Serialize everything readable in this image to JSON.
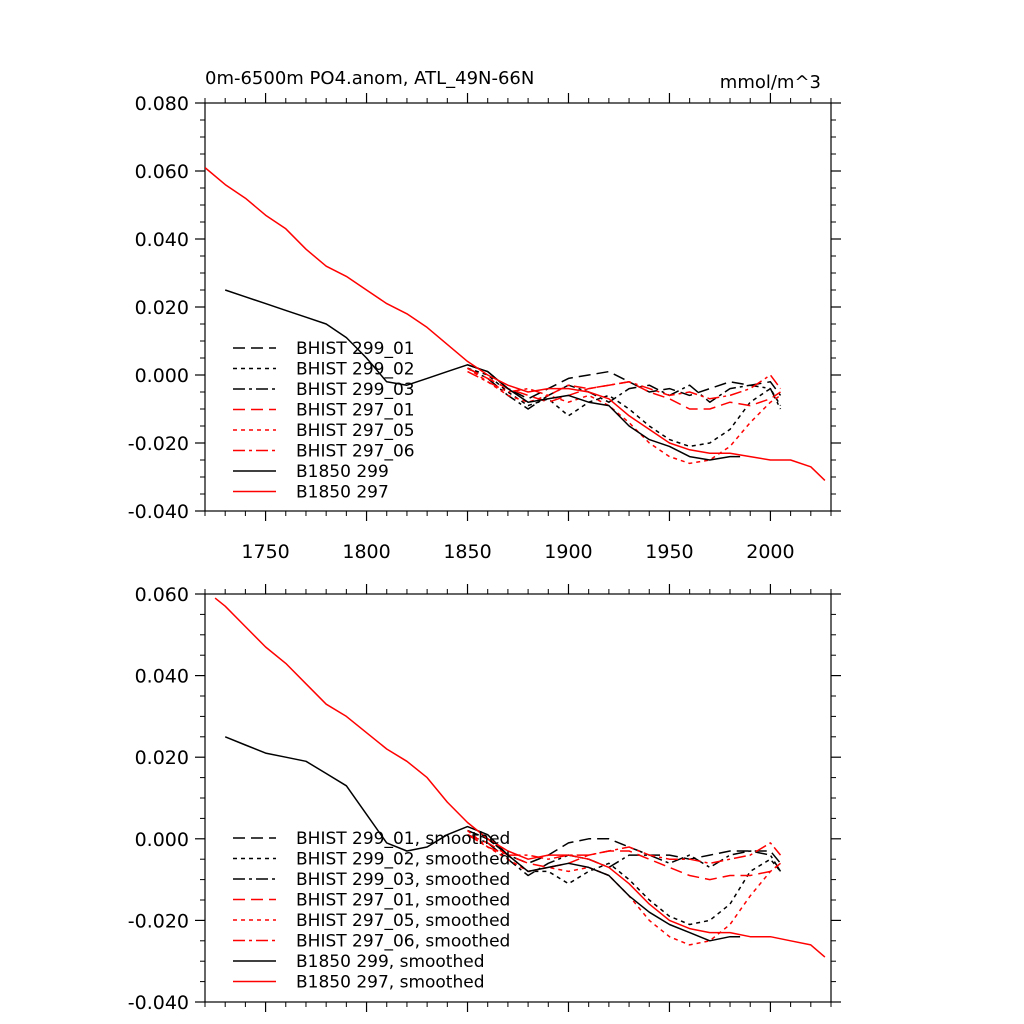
{
  "chart_data": [
    {
      "type": "line",
      "title": "0m-6500m PO4.anom, ATL_49N-66N",
      "units": "mmol/m^3",
      "xlabel": "",
      "ylabel": "",
      "xlim": [
        1720,
        2030
      ],
      "ylim": [
        -0.04,
        0.08
      ],
      "xticks": [
        1750,
        1800,
        1850,
        1900,
        1950,
        2000
      ],
      "xtick_labels": [
        "1750",
        "1800",
        "1850",
        "1900",
        "1950",
        "2000"
      ],
      "yticks": [
        -0.04,
        -0.02,
        0.0,
        0.02,
        0.04,
        0.06,
        0.08
      ],
      "ytick_labels": [
        "-0.040",
        "-0.020",
        "0.000",
        "0.020",
        "0.040",
        "0.060",
        "0.080"
      ],
      "grid": false,
      "legend": "lower-left",
      "series": [
        {
          "name": "BHIST 299_01",
          "color": "#000000",
          "dash": "long-dash",
          "x": [
            1850,
            1860,
            1870,
            1880,
            1890,
            1900,
            1910,
            1920,
            1930,
            1940,
            1950,
            1960,
            1970,
            1980,
            1990,
            2000,
            2005
          ],
          "y": [
            0.003,
            0.001,
            -0.004,
            -0.007,
            -0.004,
            -0.001,
            0.0,
            0.001,
            -0.002,
            -0.005,
            -0.004,
            -0.006,
            -0.004,
            -0.002,
            -0.003,
            -0.002,
            -0.006
          ]
        },
        {
          "name": "BHIST 299_02",
          "color": "#000000",
          "dash": "dotted",
          "x": [
            1850,
            1860,
            1870,
            1880,
            1890,
            1900,
            1910,
            1920,
            1930,
            1940,
            1950,
            1960,
            1970,
            1980,
            1990,
            2000,
            2005
          ],
          "y": [
            0.002,
            0.0,
            -0.005,
            -0.009,
            -0.007,
            -0.012,
            -0.008,
            -0.006,
            -0.01,
            -0.015,
            -0.019,
            -0.021,
            -0.02,
            -0.016,
            -0.008,
            -0.004,
            -0.009
          ]
        },
        {
          "name": "BHIST 299_03",
          "color": "#000000",
          "dash": "dash-dot",
          "x": [
            1850,
            1860,
            1870,
            1880,
            1890,
            1900,
            1910,
            1920,
            1930,
            1940,
            1950,
            1960,
            1970,
            1980,
            1990,
            2000,
            2005
          ],
          "y": [
            0.002,
            -0.001,
            -0.006,
            -0.01,
            -0.006,
            -0.003,
            -0.005,
            -0.008,
            -0.004,
            -0.003,
            -0.006,
            -0.003,
            -0.008,
            -0.004,
            -0.003,
            -0.004,
            -0.01
          ]
        },
        {
          "name": "BHIST 297_01",
          "color": "#ff0000",
          "dash": "long-dash",
          "x": [
            1850,
            1860,
            1870,
            1880,
            1890,
            1900,
            1910,
            1920,
            1930,
            1940,
            1950,
            1960,
            1970,
            1980,
            1990,
            2000,
            2005
          ],
          "y": [
            0.002,
            -0.001,
            -0.004,
            -0.006,
            -0.008,
            -0.006,
            -0.004,
            -0.003,
            -0.002,
            -0.005,
            -0.007,
            -0.01,
            -0.01,
            -0.008,
            -0.009,
            -0.007,
            -0.005
          ]
        },
        {
          "name": "BHIST 297_05",
          "color": "#ff0000",
          "dash": "dotted",
          "x": [
            1850,
            1860,
            1870,
            1880,
            1890,
            1900,
            1910,
            1920,
            1930,
            1940,
            1950,
            1960,
            1970,
            1980,
            1990,
            2000,
            2005
          ],
          "y": [
            0.002,
            -0.002,
            -0.006,
            -0.008,
            -0.006,
            -0.008,
            -0.006,
            -0.009,
            -0.014,
            -0.02,
            -0.024,
            -0.026,
            -0.025,
            -0.021,
            -0.014,
            -0.008,
            -0.006
          ]
        },
        {
          "name": "BHIST 297_06",
          "color": "#ff0000",
          "dash": "dash-dot",
          "x": [
            1850,
            1860,
            1870,
            1880,
            1890,
            1900,
            1910,
            1920,
            1930,
            1940,
            1950,
            1960,
            1970,
            1980,
            1990,
            2000,
            2005
          ],
          "y": [
            0.001,
            -0.002,
            -0.005,
            -0.004,
            -0.006,
            -0.003,
            -0.004,
            -0.003,
            -0.002,
            -0.004,
            -0.006,
            -0.005,
            -0.007,
            -0.006,
            -0.004,
            0.0,
            -0.004
          ]
        },
        {
          "name": "B1850 299",
          "color": "#000000",
          "dash": "solid",
          "x": [
            1730,
            1740,
            1750,
            1760,
            1770,
            1780,
            1790,
            1800,
            1810,
            1820,
            1830,
            1840,
            1850,
            1860,
            1870,
            1880,
            1890,
            1900,
            1910,
            1920,
            1930,
            1940,
            1950,
            1960,
            1970,
            1980,
            1985
          ],
          "y": [
            0.025,
            0.023,
            0.021,
            0.019,
            0.017,
            0.015,
            0.011,
            0.005,
            -0.002,
            -0.003,
            -0.001,
            0.001,
            0.003,
            0.001,
            -0.004,
            -0.008,
            -0.007,
            -0.006,
            -0.008,
            -0.009,
            -0.015,
            -0.019,
            -0.021,
            -0.024,
            -0.025,
            -0.024,
            -0.024
          ]
        },
        {
          "name": "B1850 297",
          "color": "#ff0000",
          "dash": "solid",
          "x": [
            1720,
            1730,
            1740,
            1750,
            1760,
            1770,
            1780,
            1790,
            1800,
            1810,
            1820,
            1830,
            1840,
            1850,
            1860,
            1870,
            1880,
            1890,
            1900,
            1910,
            1920,
            1930,
            1940,
            1950,
            1960,
            1970,
            1980,
            1990,
            2000,
            2010,
            2020,
            2027
          ],
          "y": [
            0.061,
            0.056,
            0.052,
            0.047,
            0.043,
            0.037,
            0.032,
            0.029,
            0.025,
            0.021,
            0.018,
            0.014,
            0.009,
            0.004,
            0.0,
            -0.003,
            -0.005,
            -0.004,
            -0.004,
            -0.005,
            -0.007,
            -0.012,
            -0.016,
            -0.02,
            -0.022,
            -0.023,
            -0.023,
            -0.024,
            -0.025,
            -0.025,
            -0.027,
            -0.031
          ]
        }
      ]
    },
    {
      "type": "line",
      "title": "",
      "xlabel": "",
      "ylabel": "",
      "xlim": [
        1720,
        2030
      ],
      "ylim": [
        -0.04,
        0.06
      ],
      "xticks": [
        1750,
        1800,
        1850,
        1900,
        1950,
        2000
      ],
      "xtick_labels": [],
      "yticks": [
        -0.04,
        -0.02,
        0.0,
        0.02,
        0.04,
        0.06
      ],
      "ytick_labels": [
        "-0.040",
        "-0.020",
        "0.000",
        "0.020",
        "0.040",
        "0.060"
      ],
      "grid": false,
      "legend": "lower-left",
      "series": [
        {
          "name": "BHIST 299_01, smoothed",
          "color": "#000000",
          "dash": "long-dash",
          "x": [
            1850,
            1860,
            1870,
            1880,
            1890,
            1900,
            1910,
            1920,
            1930,
            1940,
            1950,
            1960,
            1970,
            1980,
            1990,
            2000,
            2005
          ],
          "y": [
            0.002,
            0.0,
            -0.004,
            -0.006,
            -0.004,
            -0.001,
            0.0,
            0.0,
            -0.002,
            -0.004,
            -0.004,
            -0.005,
            -0.004,
            -0.003,
            -0.003,
            -0.003,
            -0.006
          ]
        },
        {
          "name": "BHIST 299_02, smoothed",
          "color": "#000000",
          "dash": "dotted",
          "x": [
            1850,
            1860,
            1870,
            1880,
            1890,
            1900,
            1910,
            1920,
            1930,
            1940,
            1950,
            1960,
            1970,
            1980,
            1990,
            2000,
            2005
          ],
          "y": [
            0.002,
            0.0,
            -0.004,
            -0.008,
            -0.008,
            -0.011,
            -0.008,
            -0.006,
            -0.01,
            -0.015,
            -0.019,
            -0.021,
            -0.02,
            -0.016,
            -0.008,
            -0.005,
            -0.008
          ]
        },
        {
          "name": "BHIST 299_03, smoothed",
          "color": "#000000",
          "dash": "dash-dot",
          "x": [
            1850,
            1860,
            1870,
            1880,
            1890,
            1900,
            1910,
            1920,
            1930,
            1940,
            1950,
            1960,
            1970,
            1980,
            1990,
            2000,
            2005
          ],
          "y": [
            0.001,
            -0.001,
            -0.005,
            -0.009,
            -0.006,
            -0.004,
            -0.005,
            -0.007,
            -0.004,
            -0.004,
            -0.006,
            -0.004,
            -0.007,
            -0.004,
            -0.003,
            -0.004,
            -0.008
          ]
        },
        {
          "name": "BHIST 297_01, smoothed",
          "color": "#ff0000",
          "dash": "long-dash",
          "x": [
            1850,
            1860,
            1870,
            1880,
            1890,
            1900,
            1910,
            1920,
            1930,
            1940,
            1950,
            1960,
            1970,
            1980,
            1990,
            2000,
            2005
          ],
          "y": [
            0.001,
            -0.001,
            -0.004,
            -0.006,
            -0.007,
            -0.006,
            -0.004,
            -0.003,
            -0.003,
            -0.005,
            -0.007,
            -0.009,
            -0.01,
            -0.009,
            -0.009,
            -0.008,
            -0.006
          ]
        },
        {
          "name": "BHIST 297_05, smoothed",
          "color": "#ff0000",
          "dash": "dotted",
          "x": [
            1850,
            1860,
            1870,
            1880,
            1890,
            1900,
            1910,
            1920,
            1930,
            1940,
            1950,
            1960,
            1970,
            1980,
            1990,
            2000,
            2005
          ],
          "y": [
            0.002,
            -0.002,
            -0.005,
            -0.008,
            -0.007,
            -0.008,
            -0.007,
            -0.009,
            -0.014,
            -0.02,
            -0.024,
            -0.026,
            -0.025,
            -0.021,
            -0.014,
            -0.008,
            -0.006
          ]
        },
        {
          "name": "BHIST 297_06, smoothed",
          "color": "#ff0000",
          "dash": "dash-dot",
          "x": [
            1850,
            1860,
            1870,
            1880,
            1890,
            1900,
            1910,
            1920,
            1930,
            1940,
            1950,
            1960,
            1970,
            1980,
            1990,
            2000,
            2005
          ],
          "y": [
            0.001,
            -0.002,
            -0.004,
            -0.004,
            -0.005,
            -0.004,
            -0.004,
            -0.003,
            -0.002,
            -0.004,
            -0.005,
            -0.005,
            -0.006,
            -0.005,
            -0.004,
            -0.001,
            -0.004
          ]
        },
        {
          "name": "B1850 299, smoothed",
          "color": "#000000",
          "dash": "solid",
          "x": [
            1730,
            1740,
            1750,
            1760,
            1770,
            1780,
            1790,
            1800,
            1810,
            1820,
            1830,
            1840,
            1850,
            1860,
            1870,
            1880,
            1890,
            1900,
            1910,
            1920,
            1930,
            1940,
            1950,
            1960,
            1970,
            1980,
            1985
          ],
          "y": [
            0.025,
            0.023,
            0.021,
            0.02,
            0.019,
            0.016,
            0.013,
            0.006,
            -0.001,
            -0.003,
            -0.002,
            0.001,
            0.003,
            0.001,
            -0.004,
            -0.008,
            -0.007,
            -0.006,
            -0.007,
            -0.009,
            -0.014,
            -0.018,
            -0.021,
            -0.023,
            -0.025,
            -0.024,
            -0.024
          ]
        },
        {
          "name": "B1850 297, smoothed",
          "color": "#ff0000",
          "dash": "solid",
          "x": [
            1725,
            1730,
            1740,
            1750,
            1760,
            1770,
            1780,
            1790,
            1800,
            1810,
            1820,
            1830,
            1840,
            1850,
            1860,
            1870,
            1880,
            1890,
            1900,
            1910,
            1920,
            1930,
            1940,
            1950,
            1960,
            1970,
            1980,
            1990,
            2000,
            2010,
            2020,
            2027
          ],
          "y": [
            0.059,
            0.057,
            0.052,
            0.047,
            0.043,
            0.038,
            0.033,
            0.03,
            0.026,
            0.022,
            0.019,
            0.015,
            0.009,
            0.004,
            0.0,
            -0.003,
            -0.005,
            -0.004,
            -0.004,
            -0.005,
            -0.007,
            -0.011,
            -0.016,
            -0.02,
            -0.022,
            -0.023,
            -0.023,
            -0.024,
            -0.024,
            -0.025,
            -0.026,
            -0.029
          ]
        }
      ]
    }
  ]
}
